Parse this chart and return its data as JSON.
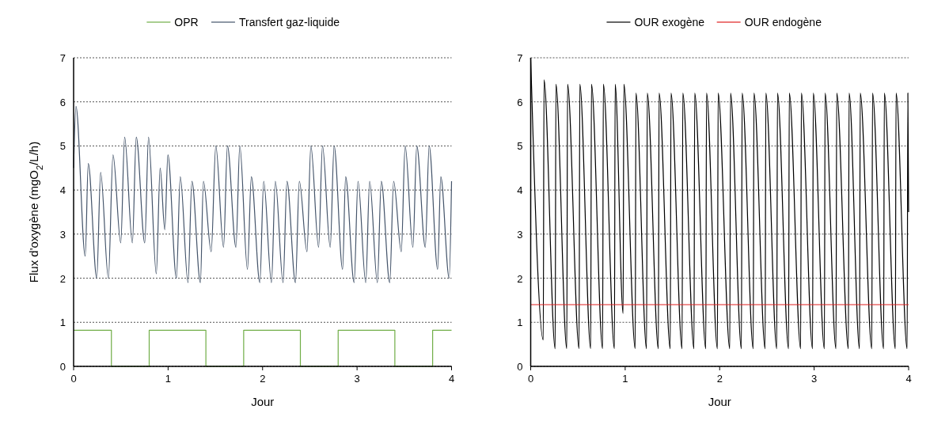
{
  "chart_data": [
    {
      "type": "line",
      "ylabel": "Flux d'oxygène (mgO$_{2}$/L/h)",
      "xlabel": "Jour",
      "xlim": [
        0,
        4
      ],
      "xticks": [
        0,
        1,
        2,
        3,
        4
      ],
      "ylim": [
        0,
        7
      ],
      "yticks": [
        0,
        1,
        2,
        3,
        4,
        5,
        6,
        7
      ],
      "grid": "y",
      "legend": "top",
      "marker": "none",
      "line_style": "solid",
      "series": [
        {
          "name": "OPR",
          "type": "step",
          "color": "#70ad47",
          "x": [
            0,
            0.4,
            0.8,
            1.4,
            1.8,
            2.4,
            2.8,
            3.4,
            3.8,
            4
          ],
          "values": [
            0.82,
            0,
            0.82,
            0,
            0.82,
            0,
            0.82,
            0,
            0.82,
            0.82
          ]
        },
        {
          "name": "Transfert gaz-liquide",
          "color": "#44546a",
          "x": [
            0,
            0.025,
            0.123,
            0.155,
            0.245,
            0.286,
            0.368,
            0.417,
            0.499,
            0.54,
            0.622,
            0.663,
            0.753,
            0.793,
            0.875,
            0.916,
            0.965,
            0.998,
            1.088,
            1.129,
            1.211,
            1.252,
            1.342,
            1.374,
            1.456,
            1.505,
            1.587,
            1.628,
            1.718,
            1.759,
            1.84,
            1.881,
            1.971,
            2.012,
            2.094,
            2.135,
            2.217,
            2.258,
            2.348,
            2.389,
            2.47,
            2.511,
            2.593,
            2.634,
            2.716,
            2.757,
            2.847,
            2.879,
            2.969,
            3.01,
            3.092,
            3.133,
            3.215,
            3.256,
            3.346,
            3.387,
            3.468,
            3.509,
            3.591,
            3.632,
            3.722,
            3.763,
            3.853,
            3.886,
            3.975,
            4
          ],
          "values": [
            4.5,
            5.9,
            2.5,
            4.6,
            2.0,
            4.4,
            2.0,
            4.8,
            2.8,
            5.2,
            2.8,
            5.2,
            2.8,
            5.2,
            2.1,
            4.5,
            3.1,
            4.8,
            2.0,
            4.3,
            1.9,
            4.2,
            1.9,
            4.2,
            2.6,
            5.0,
            2.7,
            5.0,
            2.7,
            5.0,
            2.2,
            4.3,
            1.9,
            4.2,
            1.9,
            4.2,
            1.9,
            4.2,
            1.9,
            4.2,
            2.6,
            5.0,
            2.7,
            5.0,
            2.7,
            5.0,
            2.2,
            4.3,
            1.9,
            4.2,
            1.9,
            4.2,
            1.9,
            4.2,
            1.9,
            4.2,
            2.6,
            5.0,
            2.7,
            5.0,
            2.7,
            5.0,
            2.2,
            4.3,
            2.0,
            4.2
          ]
        }
      ]
    },
    {
      "type": "line",
      "xlabel": "Jour",
      "xlim": [
        0,
        4
      ],
      "xticks": [
        0,
        1,
        2,
        3,
        4
      ],
      "ylim": [
        0,
        7
      ],
      "yticks": [
        0,
        1,
        2,
        3,
        4,
        5,
        6,
        7
      ],
      "grid": "y",
      "legend": "top",
      "marker": "none",
      "line_style": "solid",
      "series": [
        {
          "name": "OUR exogène",
          "color": "#000000",
          "x": [
            0,
            0.133,
            0.141,
            0.259,
            0.267,
            0.382,
            0.39,
            0.512,
            0.52,
            0.635,
            0.643,
            0.761,
            0.769,
            0.886,
            0.894,
            0.978,
            0.986,
            1.106,
            1.114,
            1.226,
            1.234,
            1.351,
            1.359,
            1.477,
            1.485,
            1.602,
            1.61,
            1.728,
            1.736,
            1.853,
            1.861,
            1.976,
            1.984,
            2.107,
            2.115,
            2.23,
            2.238,
            2.355,
            2.363,
            2.481,
            2.489,
            2.604,
            2.612,
            2.729,
            2.737,
            2.857,
            2.865,
            2.983,
            2.991,
            3.108,
            3.116,
            3.231,
            3.239,
            3.362,
            3.37,
            3.48,
            3.488,
            3.61,
            3.618,
            3.735,
            3.743,
            3.859,
            3.867,
            3.984,
            3.992,
            4
          ],
          "values": [
            7,
            0.6,
            6.5,
            0.4,
            6.4,
            0.4,
            6.4,
            0.4,
            6.4,
            0.4,
            6.4,
            0.4,
            6.4,
            0.4,
            6.4,
            1.2,
            6.4,
            0.4,
            6.2,
            0.4,
            6.2,
            0.4,
            6.2,
            0.4,
            6.2,
            0.4,
            6.2,
            0.4,
            6.2,
            0.4,
            6.2,
            0.4,
            6.2,
            0.4,
            6.2,
            0.4,
            6.2,
            0.4,
            6.2,
            0.4,
            6.2,
            0.4,
            6.2,
            0.4,
            6.2,
            0.4,
            6.2,
            0.4,
            6.2,
            0.4,
            6.2,
            0.4,
            6.2,
            0.4,
            6.2,
            0.4,
            6.2,
            0.4,
            6.2,
            0.4,
            6.2,
            0.4,
            6.2,
            0.4,
            6.2,
            3.5
          ]
        },
        {
          "name": "OUR endogène",
          "color": "#e02020",
          "x": [
            0,
            4
          ],
          "values": [
            1.4,
            1.4
          ]
        }
      ]
    }
  ]
}
